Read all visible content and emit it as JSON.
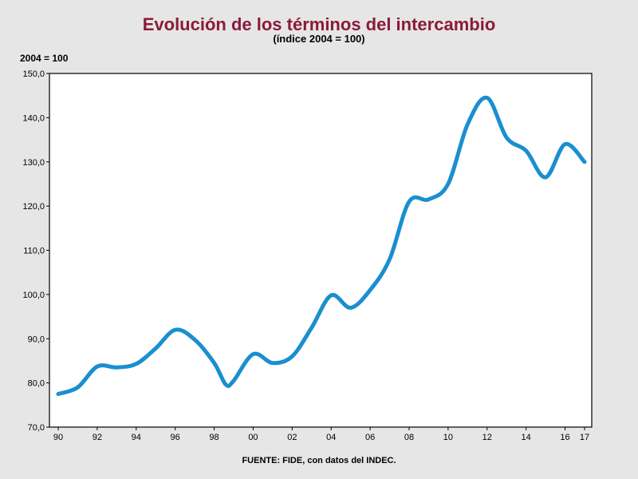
{
  "colors": {
    "title": "#8b1a3a",
    "series_line": "#1a8fd0",
    "plot_background": "#ffffff",
    "page_background": "#e6e6e6"
  },
  "chart_data": {
    "type": "line",
    "title": "Evolución de los términos del intercambio",
    "subtitle": "(índice 2004 = 100)",
    "ylabel": "2004 = 100",
    "xlabel": "",
    "source": "FUENTE: FIDE, con datos del INDEC.",
    "ylim": [
      70,
      150
    ],
    "xlim": [
      1990,
      2017
    ],
    "yticks": [
      "70,0",
      "80,0",
      "90,0",
      "100,0",
      "110,0",
      "120,0",
      "130,0",
      "140,0",
      "150,0"
    ],
    "xticks": [
      "90",
      "92",
      "94",
      "96",
      "98",
      "00",
      "02",
      "04",
      "06",
      "08",
      "10",
      "12",
      "14",
      "16",
      "17"
    ],
    "grid": false,
    "legend": "none",
    "series": [
      {
        "x": [
          1990,
          1991,
          1992,
          1993,
          1994,
          1995,
          1996,
          1997,
          1998,
          1998.6,
          1999,
          2000,
          2001,
          2002,
          2003,
          2004,
          2005,
          2006,
          2007,
          2008,
          2009,
          2010,
          2011,
          2012,
          2013,
          2014,
          2015,
          2016,
          2017
        ],
        "values": [
          77.5,
          79.0,
          83.7,
          83.5,
          84.3,
          87.8,
          92.0,
          89.8,
          84.5,
          79.6,
          80.5,
          86.5,
          84.5,
          86.0,
          92.5,
          99.8,
          97.0,
          101.0,
          108.0,
          121.0,
          121.5,
          125.0,
          138.5,
          144.5,
          135.5,
          132.5,
          126.5,
          134.0,
          130.0
        ]
      }
    ]
  }
}
